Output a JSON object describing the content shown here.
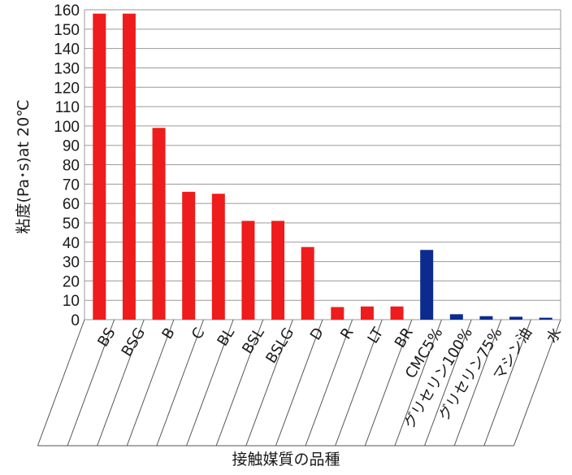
{
  "chart_data": {
    "type": "bar",
    "title": "",
    "xlabel": "接触媒質の品種",
    "ylabel": "粘度(Pa･s)at 20℃",
    "ylim": [
      0,
      160
    ],
    "yticks": [
      0,
      10,
      20,
      30,
      40,
      50,
      60,
      70,
      80,
      90,
      100,
      110,
      120,
      130,
      140,
      150,
      160
    ],
    "grid": true,
    "categories": [
      "BS",
      "BSG",
      "B",
      "C",
      "BL",
      "BSL",
      "BSLG",
      "D",
      "R",
      "LT",
      "BR",
      "CMC5%",
      "グリセリン100%",
      "グリセリン75%",
      "マシン油",
      "水"
    ],
    "values": [
      158,
      158,
      99,
      66,
      65,
      51,
      51,
      37.5,
      6.5,
      6.8,
      6.8,
      36,
      2.8,
      1.8,
      1.5,
      1.0
    ],
    "colors": [
      "#ee1c1c",
      "#ee1c1c",
      "#ee1c1c",
      "#ee1c1c",
      "#ee1c1c",
      "#ee1c1c",
      "#ee1c1c",
      "#ee1c1c",
      "#ee1c1c",
      "#ee1c1c",
      "#ee1c1c",
      "#0b2c8e",
      "#0b2c8e",
      "#0b2c8e",
      "#0b2c8e",
      "#0b2c8e"
    ]
  }
}
